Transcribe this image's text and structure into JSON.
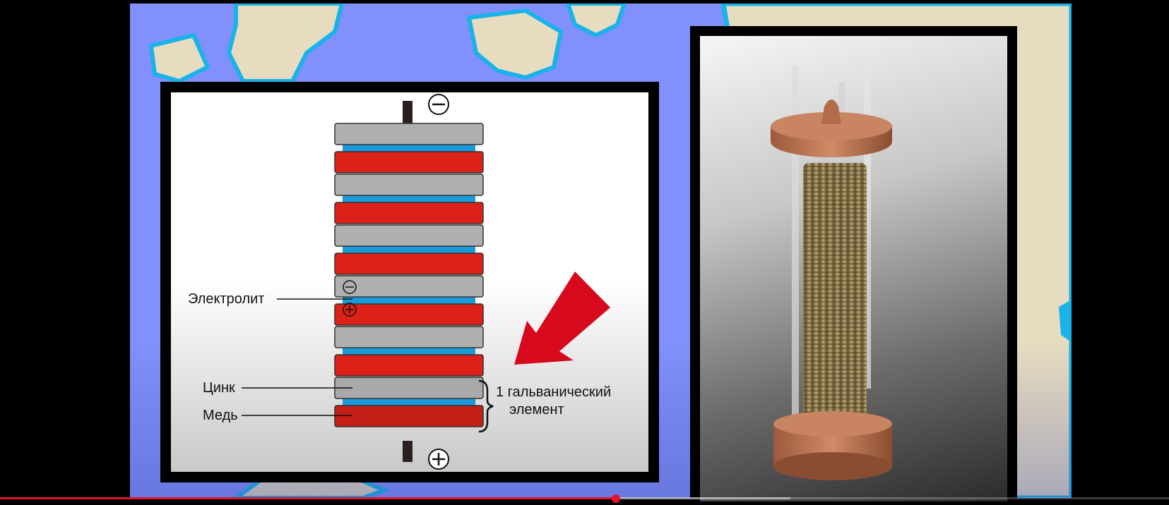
{
  "player": {
    "progress_fraction": 0.527,
    "buffered_fraction": 0.676,
    "played_color": "#e5122c"
  },
  "colors": {
    "sea": "#8190fa",
    "land": "#e7dcc0",
    "coast": "#19b3ea",
    "zinc": "#b0b0b0",
    "copper": "#dc2118",
    "electrolyte": "#1b9ad9",
    "arrow": "#d60a1c"
  },
  "diagram": {
    "terminal_top_symbol": "⊖",
    "terminal_bottom_symbol": "⊕",
    "plate_sign_minus": "⊖",
    "plate_sign_plus": "⊕",
    "labels": {
      "electrolyte": "Электролит",
      "zinc": "Цинк",
      "copper": "Медь",
      "cell_line1": "1 гальванический",
      "cell_line2": "элемент"
    },
    "stack_order_top_to_bottom": [
      "zinc",
      "copper",
      "zinc",
      "copper",
      "zinc",
      "copper",
      "zinc",
      "copper",
      "zinc",
      "copper",
      "zinc",
      "copper"
    ],
    "arrow_icon": "red-arrow-down-left-icon"
  },
  "photo": {
    "subject_icon": "voltaic-pile-photo"
  }
}
